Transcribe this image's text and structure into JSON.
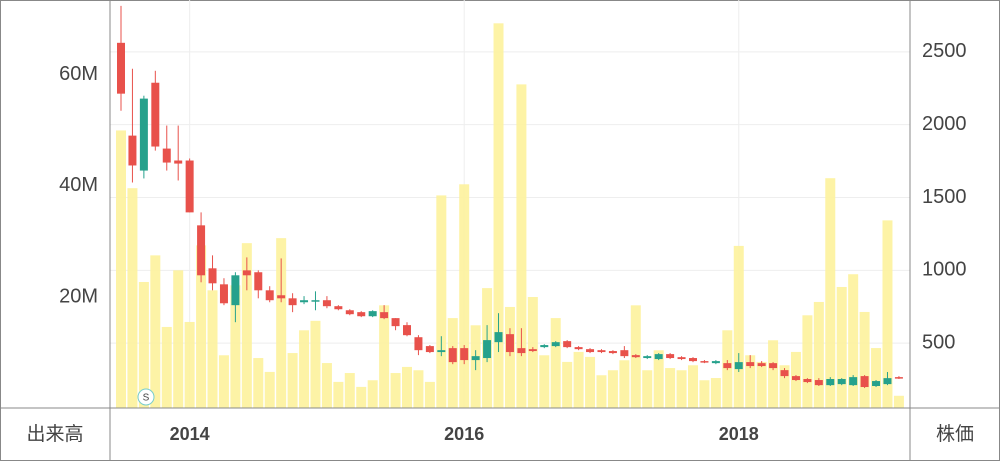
{
  "chart_data": {
    "type": "candlestick",
    "y_label": "出来高",
    "y2_label": "株価",
    "annotation": "S",
    "categories": [
      null,
      null,
      null,
      null,
      null,
      null,
      "2014",
      null,
      null,
      null,
      null,
      null,
      null,
      null,
      null,
      null,
      null,
      null,
      null,
      null,
      null,
      null,
      null,
      null,
      null,
      null,
      null,
      null,
      null,
      null,
      "2016",
      null,
      null,
      null,
      null,
      null,
      null,
      null,
      null,
      null,
      null,
      null,
      null,
      null,
      null,
      null,
      null,
      null,
      null,
      null,
      null,
      null,
      null,
      null,
      "2018",
      null,
      null,
      null,
      null,
      null,
      null,
      null,
      null,
      null,
      null,
      null,
      null,
      null,
      null
    ],
    "volume": [
      50000000,
      39600000,
      22700000,
      27500000,
      14600000,
      24800000,
      15500000,
      29300000,
      21200000,
      9500000,
      22100000,
      29700000,
      9000000,
      6500000,
      30600000,
      9900000,
      14000000,
      15700000,
      8100000,
      4700000,
      6300000,
      3800000,
      5000000,
      18500000,
      6300000,
      7400000,
      6800000,
      4700000,
      38300000,
      16200000,
      40300000,
      14900000,
      21600000,
      69300000,
      18200000,
      58300000,
      20000000,
      9500000,
      16200000,
      8300000,
      10100000,
      9200000,
      5900000,
      6800000,
      8600000,
      18500000,
      6800000,
      10400000,
      7200000,
      6800000,
      7700000,
      5000000,
      5400000,
      14000000,
      29200000,
      9500000,
      8300000,
      12200000,
      7700000,
      10100000,
      16700000,
      19100000,
      41400000,
      21800000,
      24100000,
      17300000,
      10800000,
      33800000,
      2200000
    ],
    "open": [
      2562,
      1925,
      1685,
      2288,
      1836,
      1754,
      1754,
      1309,
      1014,
      904,
      761,
      1000,
      987,
      863,
      829,
      808,
      781,
      788,
      795,
      754,
      726,
      713,
      685,
      713,
      672,
      624,
      541,
      480,
      439,
      466,
      466,
      384,
      398,
      507,
      562,
      466,
      459,
      473,
      480,
      514,
      473,
      459,
      452,
      446,
      452,
      418,
      398,
      391,
      425,
      404,
      398,
      377,
      363,
      363,
      322,
      370,
      363,
      363,
      315,
      274,
      254,
      247,
      212,
      219,
      212,
      274,
      206,
      219,
      267
    ],
    "high": [
      2816,
      2384,
      2199,
      2370,
      1994,
      1994,
      1768,
      1398,
      1103,
      946,
      987,
      1089,
      1000,
      891,
      1082,
      843,
      823,
      856,
      823,
      761,
      733,
      720,
      726,
      761,
      672,
      644,
      555,
      487,
      548,
      480,
      487,
      452,
      624,
      706,
      603,
      603,
      473,
      493,
      514,
      521,
      480,
      466,
      459,
      452,
      480,
      425,
      418,
      432,
      432,
      411,
      404,
      384,
      384,
      384,
      432,
      418,
      377,
      370,
      329,
      281,
      260,
      260,
      267,
      260,
      281,
      281,
      247,
      302,
      274
    ],
    "low": [
      2096,
      1603,
      1631,
      1822,
      1685,
      1617,
      1398,
      918,
      863,
      761,
      644,
      863,
      808,
      781,
      781,
      713,
      768,
      726,
      740,
      726,
      692,
      679,
      679,
      665,
      589,
      548,
      418,
      432,
      411,
      356,
      356,
      315,
      370,
      439,
      411,
      411,
      439,
      466,
      473,
      466,
      452,
      432,
      432,
      425,
      398,
      398,
      391,
      384,
      391,
      384,
      370,
      363,
      356,
      315,
      302,
      329,
      336,
      315,
      260,
      240,
      226,
      206,
      206,
      212,
      206,
      192,
      199,
      212,
      254
    ],
    "close": [
      2213,
      1720,
      2179,
      1850,
      1740,
      1733,
      1398,
      966,
      911,
      774,
      966,
      966,
      863,
      795,
      808,
      761,
      795,
      795,
      754,
      733,
      699,
      685,
      720,
      672,
      617,
      555,
      452,
      439,
      452,
      370,
      384,
      411,
      521,
      576,
      439,
      432,
      446,
      487,
      507,
      473,
      459,
      439,
      439,
      432,
      411,
      404,
      411,
      425,
      398,
      391,
      377,
      370,
      377,
      329,
      370,
      343,
      343,
      329,
      274,
      247,
      233,
      212,
      254,
      254,
      267,
      199,
      240,
      260,
      260
    ],
    "up_color": "#26a18c",
    "down_color": "#e8514b",
    "volume_color": "#fdf29c",
    "ylim": [
      0,
      73500000
    ],
    "yticks": [
      {
        "value": 20000000,
        "label": "20M"
      },
      {
        "value": 40000000,
        "label": "40M"
      },
      {
        "value": 60000000,
        "label": "60M"
      }
    ],
    "y2lim": [
      55,
      2856
    ],
    "y2ticks": [
      500,
      1000,
      1500,
      2000,
      2500
    ],
    "grid": true
  }
}
